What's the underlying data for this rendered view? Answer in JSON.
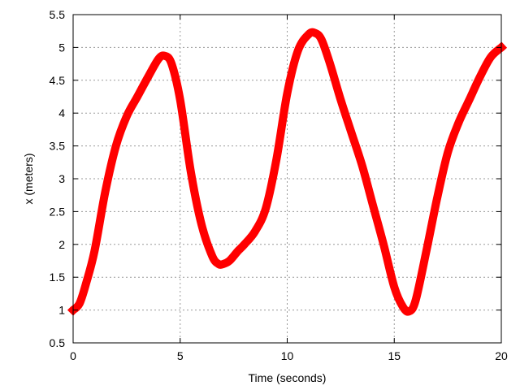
{
  "chart_data": {
    "type": "line",
    "title": "",
    "xlabel": "Time  (seconds)",
    "ylabel": "x  (meters)",
    "xlim": [
      0,
      20
    ],
    "ylim": [
      0.5,
      5.5
    ],
    "xticks": [
      0,
      5,
      10,
      15,
      20
    ],
    "yticks": [
      0.5,
      1,
      1.5,
      2,
      2.5,
      3,
      3.5,
      4,
      4.5,
      5,
      5.5
    ],
    "xtick_labels": [
      "0",
      "5",
      "10",
      "15",
      "20"
    ],
    "ytick_labels": [
      "0.5",
      "1",
      "1.5",
      "2",
      "2.5",
      "3",
      "3.5",
      "4",
      "4.5",
      "5",
      "5.5"
    ],
    "grid": true,
    "series_color": "#ff0000",
    "series": [
      {
        "x": [
          0,
          0.3,
          0.6,
          1.0,
          1.5,
          2.0,
          2.5,
          3.0,
          3.5,
          4.0,
          4.3,
          4.6,
          5.0,
          5.5,
          6.0,
          6.5,
          6.8,
          7.0,
          7.3,
          7.7,
          8.0,
          8.5,
          9.0,
          9.5,
          10.0,
          10.5,
          11.0,
          11.3,
          11.6,
          12.0,
          12.5,
          13.0,
          13.5,
          14.0,
          14.5,
          15.0,
          15.4,
          15.7,
          16.0,
          16.5,
          17.0,
          17.5,
          18.0,
          18.5,
          19.0,
          19.5,
          20.0
        ],
        "y": [
          1.0,
          1.1,
          1.4,
          1.9,
          2.8,
          3.5,
          3.95,
          4.25,
          4.55,
          4.83,
          4.87,
          4.75,
          4.2,
          3.1,
          2.3,
          1.82,
          1.7,
          1.7,
          1.75,
          1.9,
          2.0,
          2.2,
          2.55,
          3.3,
          4.3,
          4.95,
          5.2,
          5.22,
          5.12,
          4.75,
          4.2,
          3.7,
          3.2,
          2.6,
          2.0,
          1.35,
          1.05,
          0.98,
          1.15,
          1.9,
          2.7,
          3.4,
          3.85,
          4.2,
          4.55,
          4.85,
          5.0
        ]
      }
    ]
  }
}
